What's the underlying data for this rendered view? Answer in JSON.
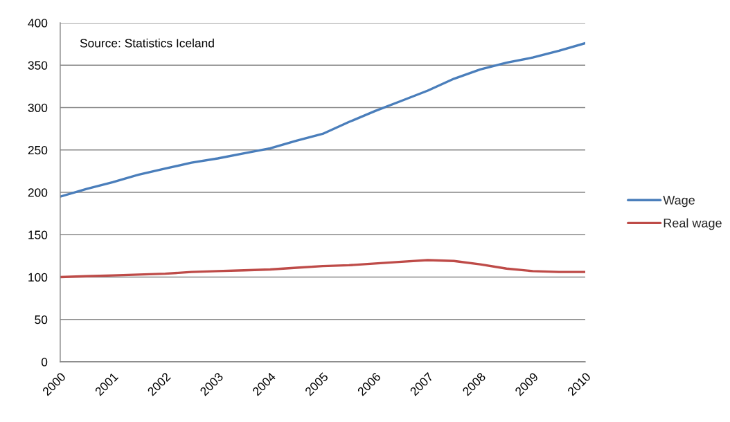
{
  "chart_data": {
    "type": "line",
    "x": [
      2000,
      2000.5,
      2001,
      2001.5,
      2002,
      2002.5,
      2003,
      2003.5,
      2004,
      2004.5,
      2005,
      2005.5,
      2006,
      2006.5,
      2007,
      2007.5,
      2008,
      2008.5,
      2009,
      2009.5,
      2010
    ],
    "series": [
      {
        "name": "Wage",
        "color": "#4a7ebb",
        "values": [
          195,
          204,
          212,
          221,
          228,
          235,
          240,
          246,
          252,
          261,
          269,
          283,
          296,
          308,
          320,
          334,
          345,
          353,
          359,
          367,
          376
        ]
      },
      {
        "name": "Real wage",
        "color": "#be4b48",
        "values": [
          100,
          101,
          102,
          103,
          104,
          106,
          107,
          108,
          109,
          111,
          113,
          114,
          116,
          118,
          120,
          119,
          115,
          110,
          107,
          106,
          106
        ]
      }
    ],
    "xlim": [
      2000,
      2010
    ],
    "xticks": [
      2000,
      2001,
      2002,
      2003,
      2004,
      2005,
      2006,
      2007,
      2008,
      2009,
      2010
    ],
    "ylim": [
      0,
      400
    ],
    "yticks": [
      0,
      50,
      100,
      150,
      200,
      250,
      300,
      350,
      400
    ],
    "grid": "y",
    "legend": "right",
    "marker": "none",
    "line_style": "solid",
    "annotations": [
      "Source: Statistics Iceland"
    ]
  }
}
